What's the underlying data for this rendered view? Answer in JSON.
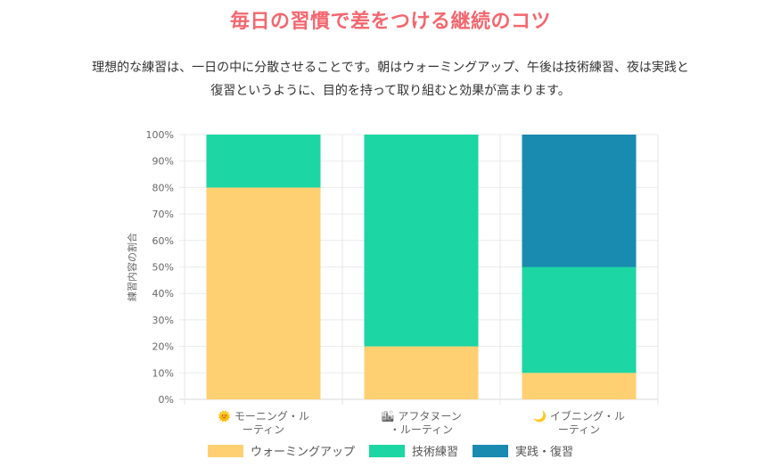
{
  "page": {
    "title": "毎日の習慣で差をつける継続のコツ",
    "description_lines": [
      "理想的な練習は、一日の中に分散させることです。朝はウォーミングアップ、午後は技術練習、夜は実践と",
      "復習というように、目的を持って取り組むと効果が高まります。"
    ]
  },
  "chart_data": {
    "type": "bar",
    "stacked": true,
    "title": "",
    "xlabel": "",
    "ylabel": "練習内容の割合",
    "ylim": [
      0,
      100
    ],
    "ytick_step": 10,
    "ytick_suffix": "%",
    "grid": true,
    "legend_position": "bottom",
    "categories": [
      {
        "icon": "🌞",
        "icon_name": "sun-icon",
        "lines": [
          "モーニング・ル",
          "ーティン"
        ]
      },
      {
        "icon": "🏙",
        "icon_name": "cityscape-icon",
        "lines": [
          "アフタヌーン",
          "・ルーティン"
        ]
      },
      {
        "icon": "🌙",
        "icon_name": "moon-icon",
        "lines": [
          "イブニング・ル",
          "ーティン"
        ]
      }
    ],
    "series": [
      {
        "name": "ウォーミングアップ",
        "color": "#ffd072",
        "values": [
          80,
          20,
          10
        ]
      },
      {
        "name": "技術練習",
        "color": "#1cd6a3",
        "values": [
          20,
          80,
          40
        ]
      },
      {
        "name": "実践・復習",
        "color": "#198ab0",
        "values": [
          0,
          0,
          50
        ]
      }
    ]
  }
}
